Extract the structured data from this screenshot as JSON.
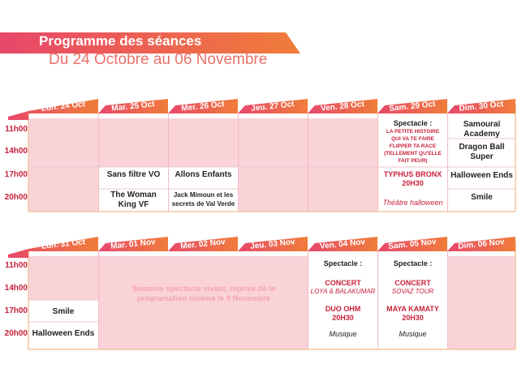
{
  "header": {
    "title": "Programme des séances",
    "subtitle": "Du 24 Octobre au 06 Novembre"
  },
  "colors": {
    "accent_orange": "#f07d3a",
    "accent_pink": "#e8476a",
    "cell_pink": "#fad3d9",
    "text_red": "#c8203a"
  },
  "times": [
    "11h00",
    "14h00",
    "17h00",
    "20h00"
  ],
  "week1": {
    "days": [
      "Lun. 24 Oct",
      "Mar. 25 Oct",
      "Mer. 26 Oct",
      "Jeu. 27 Oct",
      "Ven. 28 Oct",
      "Sam. 29 Oct",
      "Dim. 30 Oct"
    ],
    "mar": {
      "s17": "Sans filtre VO",
      "s20": "The Woman King VF"
    },
    "mer": {
      "s17": "Allons Enfants",
      "s20": "Jack Mimoun et les secrets de Val Verde"
    },
    "sam": {
      "head": "Spectacle :",
      "show": "LA PETITE HISTOIRE QUI VA TE FAIRE FLIPPER TA RACE (TELLEMENT QU'ELLE FAIT PEUR)",
      "concert": "TYPHUS BRONX",
      "hour": "20H30",
      "footer": "Théâtre halloween"
    },
    "dim": {
      "s11": "Samouraï Academy",
      "s14": "Dragon Ball Super",
      "s17": "Halloween Ends",
      "s20": "Smile"
    }
  },
  "week2": {
    "days": [
      "Lun. 31 Oct",
      "Mar. 01 Nov",
      "Mer. 02 Nov",
      "Jeu. 03 Nov",
      "Ven. 04 Nov",
      "Sam. 05 Nov",
      "Dim. 06 Nov"
    ],
    "lun": {
      "s17": "Smile",
      "s20": "Halloween Ends"
    },
    "note": "Semaine spectacle vivant, reprise de la programation cinéma le 9 Novembre",
    "ven": {
      "head": "Spectacle :",
      "title": "CONCERT",
      "subtitle": "LOYA & BALAKUMAR",
      "act": "DUO OHM",
      "hour": "20H30",
      "footer": "Musique"
    },
    "sam": {
      "head": "Spectacle :",
      "title": "CONCERT",
      "subtitle": "SOVAZ TOUR",
      "act": "MAYA KAMATY",
      "hour": "20H30",
      "footer": "Musique"
    }
  }
}
